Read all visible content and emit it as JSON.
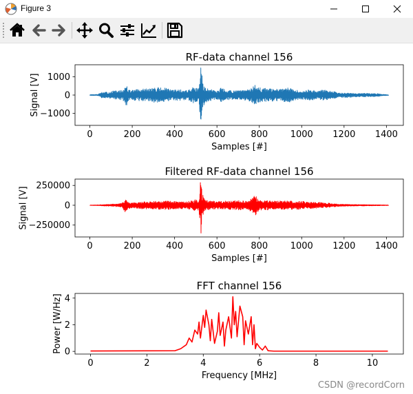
{
  "window": {
    "title": "Figure 3",
    "controls": [
      "minimize",
      "maximize",
      "close"
    ]
  },
  "toolbar": {
    "buttons": [
      {
        "name": "home",
        "icon": "home-icon"
      },
      {
        "name": "back",
        "icon": "arrow-left-icon"
      },
      {
        "name": "forward",
        "icon": "arrow-right-icon"
      },
      {
        "name": "pan",
        "icon": "move-icon"
      },
      {
        "name": "zoom",
        "icon": "search-icon"
      },
      {
        "name": "configure-subplots",
        "icon": "sliders-icon"
      },
      {
        "name": "edit-axis",
        "icon": "chart-line-icon"
      },
      {
        "name": "save",
        "icon": "save-icon"
      }
    ]
  },
  "watermark": "CSDN @recordCorn",
  "colors": {
    "raw": "#1f77b4",
    "filtered": "#ff0000",
    "fft": "#ff0000"
  },
  "chart_data": [
    {
      "type": "line",
      "title": "RF-data channel 156",
      "xlabel": "Samples [#]",
      "ylabel": "Signal [V]",
      "xlim": [
        -70,
        1480
      ],
      "ylim": [
        -1650,
        1650
      ],
      "xticks": [
        0,
        200,
        400,
        600,
        800,
        1000,
        1200,
        1400
      ],
      "yticks": [
        -1000,
        0,
        1000
      ],
      "ytick_labels": [
        "−1000",
        "0",
        "1000"
      ],
      "series_color": "#1f77b4",
      "series": [
        {
          "name": "RF-data",
          "x_range": [
            0,
            1410
          ],
          "envelope": [
            [
              0,
              25
            ],
            [
              40,
              30
            ],
            [
              45,
              100
            ],
            [
              55,
              150
            ],
            [
              90,
              160
            ],
            [
              110,
              220
            ],
            [
              150,
              260
            ],
            [
              163,
              380
            ],
            [
              168,
              420
            ],
            [
              172,
              650
            ],
            [
              178,
              380
            ],
            [
              185,
              280
            ],
            [
              200,
              280
            ],
            [
              240,
              320
            ],
            [
              280,
              360
            ],
            [
              320,
              420
            ],
            [
              360,
              380
            ],
            [
              390,
              260
            ],
            [
              420,
              330
            ],
            [
              455,
              250
            ],
            [
              460,
              230
            ],
            [
              480,
              450
            ],
            [
              500,
              380
            ],
            [
              515,
              360
            ],
            [
              522,
              1550
            ],
            [
              528,
              1420
            ],
            [
              533,
              680
            ],
            [
              545,
              420
            ],
            [
              560,
              330
            ],
            [
              600,
              260
            ],
            [
              620,
              410
            ],
            [
              640,
              280
            ],
            [
              680,
              230
            ],
            [
              720,
              260
            ],
            [
              760,
              340
            ],
            [
              780,
              560
            ],
            [
              800,
              400
            ],
            [
              840,
              360
            ],
            [
              860,
              330
            ],
            [
              900,
              330
            ],
            [
              940,
              400
            ],
            [
              960,
              300
            ],
            [
              1000,
              220
            ],
            [
              1040,
              300
            ],
            [
              1080,
              210
            ],
            [
              1100,
              290
            ],
            [
              1150,
              200
            ],
            [
              1180,
              120
            ],
            [
              1210,
              150
            ],
            [
              1250,
              100
            ],
            [
              1300,
              100
            ],
            [
              1360,
              80
            ],
            [
              1380,
              40
            ],
            [
              1410,
              20
            ]
          ]
        }
      ]
    },
    {
      "type": "line",
      "title": "Filtered RF-data channel 156",
      "xlabel": "Samples [#]",
      "ylabel": "Signal [V]",
      "xlim": [
        -70,
        1480
      ],
      "ylim": [
        -400000,
        330000
      ],
      "xticks": [
        0,
        200,
        400,
        600,
        800,
        1000,
        1200,
        1400
      ],
      "yticks": [
        -250000,
        0,
        250000
      ],
      "ytick_labels": [
        "−250000",
        "0",
        "250000"
      ],
      "series_color": "#ff0000",
      "series": [
        {
          "name": "Filtered RF-data",
          "x_range": [
            0,
            1410
          ],
          "envelope": [
            [
              0,
              2000
            ],
            [
              40,
              4000
            ],
            [
              60,
              8000
            ],
            [
              100,
              14000
            ],
            [
              150,
              22000
            ],
            [
              168,
              90000
            ],
            [
              178,
              50000
            ],
            [
              200,
              35000
            ],
            [
              250,
              45000
            ],
            [
              300,
              50000
            ],
            [
              350,
              55000
            ],
            [
              400,
              50000
            ],
            [
              460,
              45000
            ],
            [
              500,
              70000
            ],
            [
              515,
              60000
            ],
            [
              522,
              310000
            ],
            [
              526,
              380000
            ],
            [
              530,
              150000
            ],
            [
              545,
              60000
            ],
            [
              600,
              50000
            ],
            [
              650,
              55000
            ],
            [
              700,
              60000
            ],
            [
              750,
              55000
            ],
            [
              780,
              130000
            ],
            [
              800,
              60000
            ],
            [
              850,
              60000
            ],
            [
              900,
              55000
            ],
            [
              950,
              55000
            ],
            [
              1000,
              50000
            ],
            [
              1050,
              40000
            ],
            [
              1100,
              35000
            ],
            [
              1150,
              20000
            ],
            [
              1200,
              12000
            ],
            [
              1300,
              8000
            ],
            [
              1410,
              3000
            ]
          ]
        }
      ]
    },
    {
      "type": "line",
      "title": "FFT channel 156",
      "xlabel": "Frequency [MHz]",
      "ylabel": "Power [W/Hz]",
      "xlim": [
        -0.55,
        11.1
      ],
      "ylim": [
        -0.2,
        4.35
      ],
      "xticks": [
        0,
        2,
        4,
        6,
        8,
        10
      ],
      "yticks": [
        0,
        2,
        4
      ],
      "ytick_labels": [
        "0",
        "2",
        "4"
      ],
      "series_color": "#ff0000",
      "series": [
        {
          "name": "FFT",
          "x": [
            0,
            3.0,
            3.2,
            3.4,
            3.5,
            3.6,
            3.7,
            3.8,
            3.85,
            3.9,
            4.0,
            4.05,
            4.1,
            4.2,
            4.25,
            4.3,
            4.4,
            4.5,
            4.55,
            4.6,
            4.7,
            4.75,
            4.8,
            4.9,
            5.0,
            5.05,
            5.1,
            5.15,
            5.2,
            5.3,
            5.4,
            5.45,
            5.5,
            5.6,
            5.7,
            5.75,
            5.8,
            5.85,
            5.9,
            6.0,
            6.1,
            6.2,
            6.3,
            6.5,
            10.55
          ],
          "y": [
            0.03,
            0.05,
            0.2,
            0.5,
            1.0,
            0.7,
            1.6,
            1.3,
            2.2,
            1.0,
            2.7,
            1.8,
            3.1,
            2.0,
            0.8,
            2.4,
            0.6,
            1.5,
            2.9,
            1.2,
            2.2,
            0.4,
            1.6,
            2.6,
            1.0,
            4.1,
            2.0,
            3.0,
            1.1,
            3.4,
            2.6,
            0.5,
            2.3,
            1.3,
            2.6,
            0.5,
            2.0,
            0.2,
            0.6,
            0.3,
            0.1,
            0.4,
            0.05,
            0.02,
            0.02
          ]
        }
      ]
    }
  ]
}
